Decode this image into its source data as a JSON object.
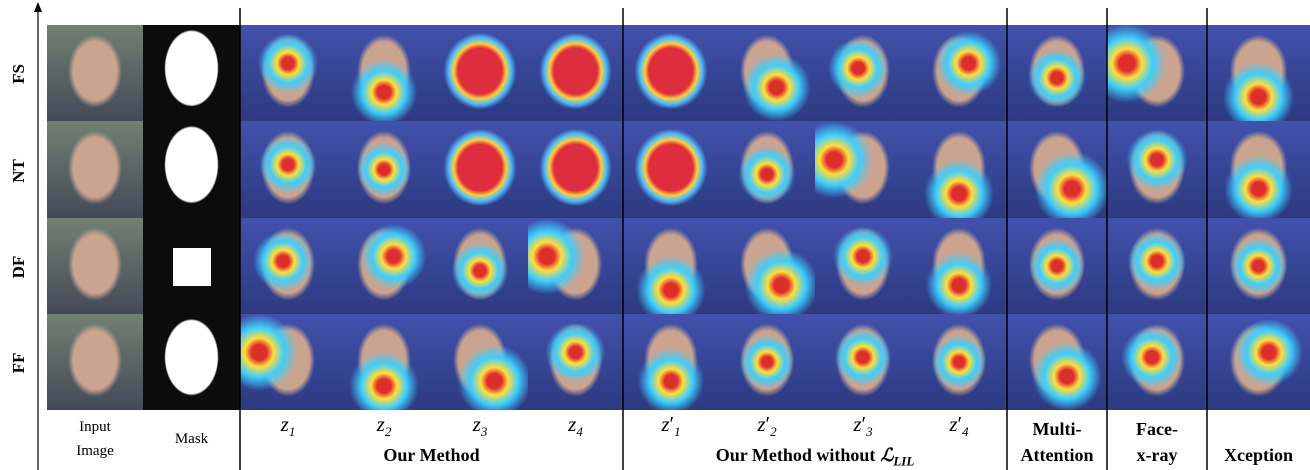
{
  "row_labels": [
    "FS",
    "NT",
    "DF",
    "FF"
  ],
  "columns": {
    "input": [
      "Input",
      "Image"
    ],
    "mask": "Mask",
    "ours": [
      {
        "symbol": "z",
        "sub": "1"
      },
      {
        "symbol": "z",
        "sub": "2"
      },
      {
        "symbol": "z",
        "sub": "3"
      },
      {
        "symbol": "z",
        "sub": "4"
      }
    ],
    "ours_without": [
      {
        "symbol": "z",
        "prime": "′",
        "sub": "1"
      },
      {
        "symbol": "z",
        "prime": "′",
        "sub": "2"
      },
      {
        "symbol": "z",
        "prime": "′",
        "sub": "3"
      },
      {
        "symbol": "z",
        "prime": "′",
        "sub": "4"
      }
    ],
    "multi_attention": [
      "Multi-",
      "Attention"
    ],
    "face_xray": [
      "Face-",
      "x-ray"
    ],
    "xception": "Xception"
  },
  "groups": {
    "ours": "Our Method",
    "without": {
      "text": "Our Method without",
      "loss": "ℒ",
      "sub": "LIL"
    }
  }
}
